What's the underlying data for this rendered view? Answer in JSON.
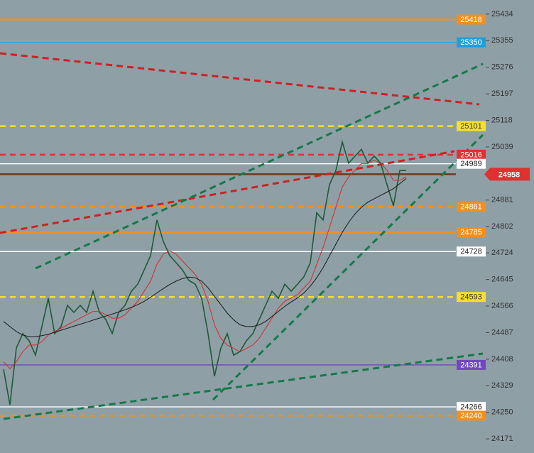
{
  "chart_data": {
    "type": "line",
    "ylim": [
      24129,
      25476
    ],
    "yticks": [
      25434,
      25355,
      25276,
      25197,
      25118,
      25039,
      24881,
      24802,
      24724,
      24645,
      24566,
      24487,
      24408,
      24329,
      24250,
      24171
    ],
    "series": [
      {
        "color": "#1e5a38",
        "values": [
          24378,
          24272,
          24441,
          24484,
          24463,
          24420,
          24505,
          24589,
          24484,
          24505,
          24568,
          24547,
          24568,
          24547,
          24610,
          24547,
          24526,
          24484,
          24547,
          24568,
          24610,
          24631,
          24673,
          24716,
          24822,
          24758,
          24716,
          24695,
          24673,
          24642,
          24631,
          24589,
          24484,
          24357,
          24441,
          24484,
          24420,
          24431,
          24463,
          24484,
          24526,
          24568,
          24610,
          24589,
          24631,
          24610,
          24631,
          24653,
          24695,
          24843,
          24822,
          24927,
          24969,
          25054,
          24991,
          25012,
          25032,
          24991,
          25012,
          24991,
          24927,
          24864,
          24969,
          24969
        ]
      },
      {
        "color": "#d42a2a",
        "values": [
          24400,
          24380,
          24400,
          24430,
          24450,
          24450,
          24460,
          24480,
          24490,
          24500,
          24510,
          24520,
          24530,
          24540,
          24550,
          24550,
          24540,
          24530,
          24530,
          24540,
          24560,
          24580,
          24610,
          24640,
          24690,
          24720,
          24730,
          24720,
          24700,
          24680,
          24660,
          24630,
          24580,
          24510,
          24470,
          24450,
          24440,
          24430,
          24440,
          24450,
          24470,
          24500,
          24530,
          24560,
          24580,
          24590,
          24600,
          24620,
          24640,
          24690,
          24740,
          24800,
          24860,
          24920,
          24950,
          24970,
          24990,
          24990,
          25000,
          24990,
          24970,
          24940,
          24940,
          24950
        ]
      },
      {
        "color": "#1a1a1a",
        "values": [
          24520,
          24505,
          24490,
          24480,
          24475,
          24475,
          24478,
          24482,
          24488,
          24494,
          24500,
          24506,
          24512,
          24518,
          24524,
          24530,
          24536,
          24542,
          24548,
          24555,
          24562,
          24570,
          24580,
          24592,
          24605,
          24618,
          24630,
          24640,
          24648,
          24652,
          24650,
          24640,
          24620,
          24595,
          24570,
          24545,
          24525,
          24510,
          24505,
          24505,
          24510,
          24520,
          24535,
          24550,
          24565,
          24578,
          24590,
          24605,
          24625,
          24650,
          24680,
          24715,
          24750,
          24785,
          24815,
          24840,
          24860,
          24875,
          24885,
          24895,
          24905,
          24915,
          24930,
          24945
        ]
      }
    ],
    "levels": [
      {
        "value": 25418,
        "color": "#f0901e",
        "dashed": false,
        "label_color": "#f0901e",
        "text_color": "#ffffff"
      },
      {
        "value": 25350,
        "color": "#2aa8e8",
        "dashed": false,
        "label_color": "#1aa0e0",
        "text_color": "#ffffff"
      },
      {
        "value": 25101,
        "color": "#f5e02a",
        "dashed": true,
        "label_color": "#f5e02a",
        "text_color": "#333333"
      },
      {
        "value": 25016,
        "color": "#e03030",
        "dashed": true,
        "label_color": "#e03030",
        "text_color": "#ffffff"
      },
      {
        "value": 24989,
        "color": "#ffffff",
        "dashed": false,
        "label_color": "#ffffff",
        "text_color": "#222222"
      },
      {
        "value": 24958,
        "color": "#6b3a1e",
        "dashed": false,
        "label_color": "#e03030",
        "text_color": "#ffffff",
        "badge": true
      },
      {
        "value": 24861,
        "color": "#f0901e",
        "dashed": true,
        "label_color": "#f0901e",
        "text_color": "#ffffff"
      },
      {
        "value": 24785,
        "color": "#f0901e",
        "dashed": false,
        "label_color": "#f0901e",
        "text_color": "#ffffff"
      },
      {
        "value": 24728,
        "color": "#ffffff",
        "dashed": false,
        "label_color": "#ffffff",
        "text_color": "#222222"
      },
      {
        "value": 24593,
        "color": "#f5e02a",
        "dashed": true,
        "label_color": "#f5e02a",
        "text_color": "#333333"
      },
      {
        "value": 24391,
        "color": "#7048c0",
        "dashed": false,
        "label_color": "#7048c0",
        "text_color": "#ffffff"
      },
      {
        "value": 24266,
        "color": "#ffffff",
        "dashed": false,
        "label_color": "#ffffff",
        "text_color": "#222222"
      },
      {
        "value": 24240,
        "color": "#f0901e",
        "dashed": true,
        "label_color": "#f0901e",
        "text_color": "#ffffff"
      }
    ]
  }
}
